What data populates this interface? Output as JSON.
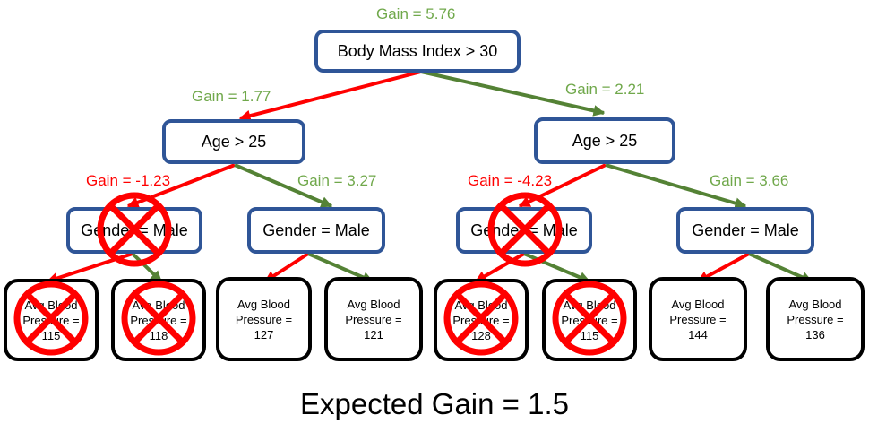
{
  "colors": {
    "node_border": "#2f5597",
    "leaf_border": "#000000",
    "positive_gain": "#70a84b",
    "negative_gain": "#ff0000",
    "prune_mark": "#ff0000"
  },
  "root": {
    "label": "Body Mass Index > 30",
    "gain": "Gain = 5.76"
  },
  "level1": [
    {
      "label": "Age > 25",
      "edge_gain": "Gain = 1.77"
    },
    {
      "label": "Age > 25",
      "edge_gain": "Gain = 2.21"
    }
  ],
  "level2": [
    {
      "label": "Gender = Male",
      "edge_gain": "Gain = -1.23",
      "pruned": true
    },
    {
      "label": "Gender = Male",
      "edge_gain": "Gain = 3.27",
      "pruned": false
    },
    {
      "label": "Gender = Male",
      "edge_gain": "Gain = -4.23",
      "pruned": true
    },
    {
      "label": "Gender = Male",
      "edge_gain": "Gain = 3.66",
      "pruned": false
    }
  ],
  "leaves": [
    {
      "line1": "Avg Blood",
      "line2": "Pressure =",
      "value": "115",
      "pruned": true
    },
    {
      "line1": "Avg Blood",
      "line2": "Pressure =",
      "value": "118",
      "pruned": true
    },
    {
      "line1": "Avg Blood",
      "line2": "Pressure =",
      "value": "127",
      "pruned": false
    },
    {
      "line1": "Avg Blood",
      "line2": "Pressure =",
      "value": "121",
      "pruned": false
    },
    {
      "line1": "Avg Blood",
      "line2": "Pressure =",
      "value": "128",
      "pruned": true
    },
    {
      "line1": "Avg Blood",
      "line2": "Pressure =",
      "value": "115",
      "pruned": true
    },
    {
      "line1": "Avg Blood",
      "line2": "Pressure =",
      "value": "144",
      "pruned": false
    },
    {
      "line1": "Avg Blood",
      "line2": "Pressure =",
      "value": "136",
      "pruned": false
    }
  ],
  "footer": {
    "expected_gain": "Expected Gain = 1.5"
  }
}
